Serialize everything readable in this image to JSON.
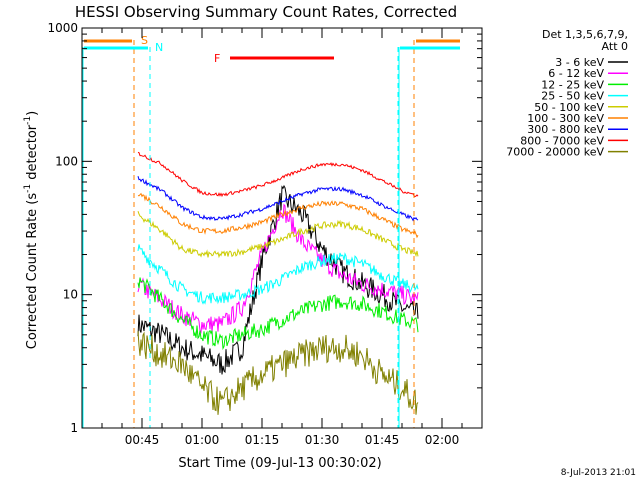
{
  "title": "HESSI Observing Summary Count Rates, Corrected",
  "xlabel": "Start Time (09-Jul-13 00:30:02)",
  "ylabel_main": "Corrected Count Rate (s",
  "ylabel_sup1": "-1",
  "ylabel_mid": " detector",
  "ylabel_sup2": "-1",
  "ylabel_end": ")",
  "timestamp": "8-Jul-2013 21:01",
  "legend": {
    "det_line1": "Det 1,3,5,6,7,9,",
    "det_line2": "Att 0",
    "entries": [
      {
        "label": "3 - 6 keV",
        "color": "#000000"
      },
      {
        "label": "6 - 12 keV",
        "color": "#ff00ff"
      },
      {
        "label": "12 - 25 keV",
        "color": "#00ee00"
      },
      {
        "label": "25 - 50 keV",
        "color": "#00ffff"
      },
      {
        "label": "50 - 100 keV",
        "color": "#cccc00"
      },
      {
        "label": "100 - 300 keV",
        "color": "#ff8000"
      },
      {
        "label": "300 - 800 keV",
        "color": "#0000ff"
      },
      {
        "label": "800 - 7000 keV",
        "color": "#ff0000"
      },
      {
        "label": "7000 - 20000 keV",
        "color": "#808000"
      }
    ]
  },
  "flags": {
    "s_label": "S",
    "n_label": "N",
    "f_label": "F"
  },
  "chart_data": {
    "type": "line",
    "title": "HESSI Observing Summary Count Rates, Corrected",
    "xlabel": "Start Time (09-Jul-13 00:30:02)",
    "ylabel": "Corrected Count Rate (s^-1 detector^-1)",
    "yscale": "log",
    "ylim": [
      1,
      1000
    ],
    "xlim": [
      "00:30",
      "02:10"
    ],
    "x_ticks": [
      "00:45",
      "01:00",
      "01:15",
      "01:30",
      "01:45",
      "02:00"
    ],
    "y_ticks": [
      "1",
      "10",
      "100",
      "1000"
    ],
    "x": [
      "00:44",
      "00:50",
      "00:55",
      "01:00",
      "01:05",
      "01:10",
      "01:15",
      "01:20",
      "01:25",
      "01:30",
      "01:35",
      "01:40",
      "01:45",
      "01:50",
      "01:54"
    ],
    "series": [
      {
        "name": "3 - 6 keV",
        "color": "#000000",
        "values": [
          6,
          5,
          4,
          3.5,
          3,
          4,
          18,
          55,
          40,
          22,
          15,
          12,
          10,
          8,
          7
        ]
      },
      {
        "name": "6 - 12 keV",
        "color": "#ff00ff",
        "values": [
          12,
          9,
          7,
          6,
          6,
          8,
          20,
          45,
          25,
          18,
          14,
          12,
          11,
          10,
          9
        ]
      },
      {
        "name": "12 - 25 keV",
        "color": "#00ee00",
        "values": [
          13,
          9,
          6.5,
          5,
          4.5,
          5,
          5.5,
          6.5,
          7.5,
          8.5,
          9,
          8.5,
          7.5,
          6.5,
          6
        ]
      },
      {
        "name": "25 - 50 keV",
        "color": "#00ffff",
        "values": [
          22,
          15,
          11,
          9.5,
          9.5,
          10,
          11,
          13,
          16,
          18,
          19,
          17,
          14,
          12,
          11
        ]
      },
      {
        "name": "50 - 100 keV",
        "color": "#cccc00",
        "values": [
          40,
          30,
          22,
          20,
          20,
          21,
          23,
          26,
          30,
          33,
          34,
          31,
          26,
          22,
          20
        ]
      },
      {
        "name": "100 - 300 keV",
        "color": "#ff8000",
        "values": [
          58,
          45,
          34,
          30,
          30,
          32,
          35,
          40,
          45,
          48,
          48,
          44,
          37,
          31,
          28
        ]
      },
      {
        "name": "300 - 800 keV",
        "color": "#0000ff",
        "values": [
          75,
          60,
          45,
          38,
          37,
          40,
          44,
          50,
          57,
          62,
          62,
          56,
          47,
          40,
          36
        ]
      },
      {
        "name": "800 - 7000 keV",
        "color": "#ff0000",
        "values": [
          115,
          95,
          72,
          58,
          56,
          60,
          66,
          75,
          87,
          95,
          95,
          86,
          72,
          60,
          55
        ]
      },
      {
        "name": "7000 - 20000 keV",
        "color": "#808000",
        "values": [
          4.5,
          3.5,
          3,
          2,
          1.5,
          2,
          2.5,
          3,
          3.5,
          4,
          4,
          3.5,
          2.5,
          2,
          1.5
        ]
      }
    ],
    "flag_lines": [
      {
        "label": "S",
        "color": "#ff8000",
        "times": [
          "00:43",
          "01:53"
        ]
      },
      {
        "label": "N",
        "color": "#00ffff",
        "times": [
          "00:47",
          "01:49"
        ]
      },
      {
        "label": "F",
        "color": "#ff0000",
        "range": [
          "01:07",
          "01:33"
        ]
      }
    ]
  }
}
